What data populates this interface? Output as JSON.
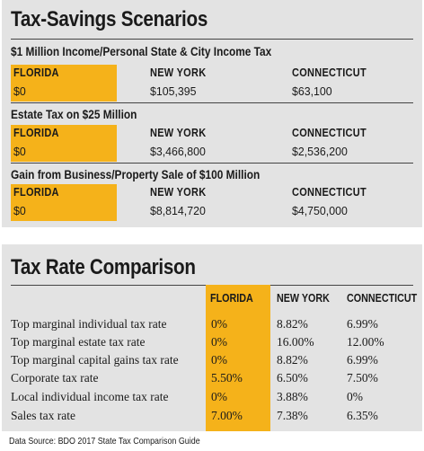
{
  "savings": {
    "title": "Tax-Savings Scenarios",
    "scenarios": [
      {
        "heading": "$1 Million Income/Personal State & City Income Tax",
        "florida_label": "FLORIDA",
        "florida_value": "$0",
        "ny_label": "NEW YORK",
        "ny_value": "$105,395",
        "ct_label": "CONNECTICUT",
        "ct_value": "$63,100"
      },
      {
        "heading": "Estate Tax on $25 Million",
        "florida_label": "FLORIDA",
        "florida_value": "$0",
        "ny_label": "NEW YORK",
        "ny_value": "$3,466,800",
        "ct_label": "CONNECTICUT",
        "ct_value": "$2,536,200"
      },
      {
        "heading": "Gain from Business/Property Sale of $100 Million",
        "florida_label": "FLORIDA",
        "florida_value": "$0",
        "ny_label": "NEW YORK",
        "ny_value": "$8,814,720",
        "ct_label": "CONNECTICUT",
        "ct_value": "$4,750,000"
      }
    ]
  },
  "comparison": {
    "title": "Tax Rate Comparison",
    "columns": [
      "FLORIDA",
      "NEW YORK",
      "CONNECTICUT"
    ],
    "rows": [
      {
        "label": "Top marginal individual tax rate",
        "florida": "0%",
        "ny": "8.82%",
        "ct": "6.99%"
      },
      {
        "label": "Top marginal estate tax rate",
        "florida": "0%",
        "ny": "16.00%",
        "ct": "12.00%"
      },
      {
        "label": "Top marginal capital gains tax rate",
        "florida": "0%",
        "ny": "8.82%",
        "ct": "6.99%"
      },
      {
        "label": "Corporate tax rate",
        "florida": "5.50%",
        "ny": "6.50%",
        "ct": "7.50%"
      },
      {
        "label": "Local individual income tax rate",
        "florida": "0%",
        "ny": "3.88%",
        "ct": "0%"
      },
      {
        "label": "Sales tax rate",
        "florida": "7.00%",
        "ny": "7.38%",
        "ct": "6.35%"
      }
    ]
  },
  "source": "Data Source: BDO 2017 State Tax Comparison Guide",
  "colors": {
    "accent": "#f5b21a",
    "panel": "#e3e3e3",
    "text": "#1a1a1a"
  }
}
